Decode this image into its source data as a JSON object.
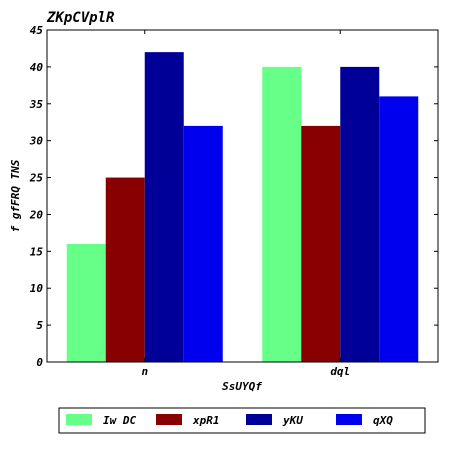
{
  "chart_data": {
    "type": "bar",
    "title": "ZKpCVplR",
    "xlabel": "SsUYQf",
    "ylabel": "f gfFRQ TNS",
    "categories": [
      "n",
      "dql"
    ],
    "ylim": [
      0,
      45
    ],
    "yticks": [
      0,
      5,
      10,
      15,
      20,
      25,
      30,
      35,
      40,
      45
    ],
    "series": [
      {
        "name": "Iw DC",
        "color": "#66ff88",
        "values": [
          16,
          40
        ]
      },
      {
        "name": "xpR1",
        "color": "#880000",
        "values": [
          25,
          32
        ]
      },
      {
        "name": "yKU",
        "color": "#000099",
        "values": [
          42,
          40
        ]
      },
      {
        "name": "qXQ",
        "color": "#0000ee",
        "values": [
          32,
          36
        ]
      }
    ],
    "grid": false,
    "legend_position": "bottom"
  }
}
